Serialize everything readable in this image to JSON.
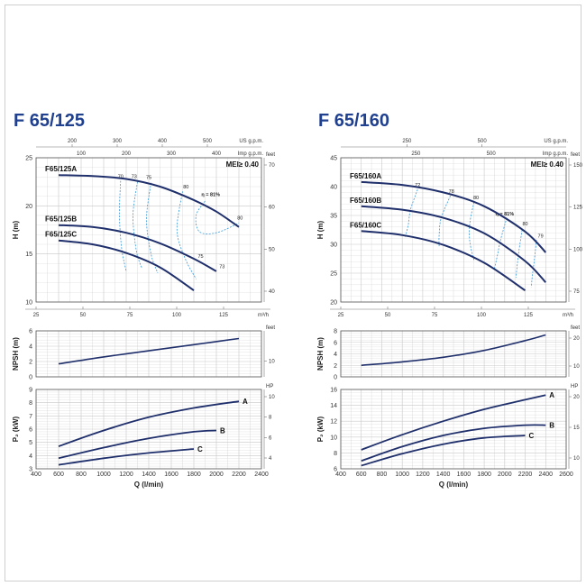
{
  "chart_data": [
    {
      "type": "line",
      "title": "F 65/125",
      "mei": "MEI≥ 0.40",
      "head": {
        "ylabel": "H (m)",
        "ylim": [
          10,
          25
        ],
        "yticks": [
          "10",
          "15",
          "20",
          "25"
        ],
        "right_unit": "feet",
        "right_ticks": [
          "40",
          "50",
          "60",
          "70"
        ],
        "top_unit": "US g.p.m.",
        "top_ticks": [
          "200",
          "300",
          "400",
          "500"
        ],
        "imp_unit": "Imp g.p.m.",
        "imp_ticks": [
          "100",
          "200",
          "300",
          "400"
        ],
        "bottom_unit": "m³/h",
        "bottom_ticks": [
          "25",
          "50",
          "75",
          "100",
          "125"
        ],
        "series": [
          {
            "name": "F65/125A",
            "x": [
              600,
              900,
              1200,
              1500,
              1800,
              2000,
              2200
            ],
            "y": [
              23.2,
              23.1,
              22.8,
              22.0,
              20.6,
              19.4,
              17.8
            ]
          },
          {
            "name": "F65/125B",
            "x": [
              600,
              900,
              1200,
              1500,
              1800,
              2000
            ],
            "y": [
              18.0,
              17.8,
              17.2,
              16.1,
              14.5,
              13.2
            ]
          },
          {
            "name": "F65/125C",
            "x": [
              600,
              900,
              1200,
              1500,
              1800
            ],
            "y": [
              16.4,
              16.0,
              15.1,
              13.6,
              11.2
            ]
          }
        ],
        "efficiency_labels": [
          "70",
          "73",
          "75",
          "80",
          "η = 81%",
          "80",
          "75",
          "73"
        ]
      },
      "npsh": {
        "ylabel": "NPSH (m)",
        "ylim": [
          0,
          6
        ],
        "yticks": [
          "0",
          "2",
          "4",
          "6"
        ],
        "right_unit": "feet",
        "right_ticks": [
          "10"
        ],
        "x": [
          600,
          1000,
          1400,
          1800,
          2200
        ],
        "y": [
          1.7,
          2.6,
          3.4,
          4.2,
          5.0
        ]
      },
      "power": {
        "ylabel": "P₂ (kW)",
        "ylim": [
          3,
          9
        ],
        "yticks": [
          "3",
          "4",
          "5",
          "6",
          "7",
          "8",
          "9"
        ],
        "right_unit": "HP",
        "right_ticks": [
          "4",
          "6",
          "8",
          "10"
        ],
        "xlabel": "Q (l/min)",
        "xlim": [
          400,
          2400
        ],
        "xticks": [
          "400",
          "600",
          "800",
          "1000",
          "1200",
          "1400",
          "1600",
          "1800",
          "2000",
          "2200",
          "2400"
        ],
        "series": [
          {
            "name": "A",
            "x": [
              600,
              1000,
              1400,
              1800,
              2200
            ],
            "y": [
              4.7,
              5.9,
              6.9,
              7.6,
              8.1
            ]
          },
          {
            "name": "B",
            "x": [
              600,
              1000,
              1400,
              1800,
              2000
            ],
            "y": [
              3.8,
              4.6,
              5.3,
              5.8,
              5.9
            ]
          },
          {
            "name": "C",
            "x": [
              600,
              1000,
              1400,
              1800
            ],
            "y": [
              3.3,
              3.8,
              4.2,
              4.5
            ]
          }
        ]
      }
    },
    {
      "type": "line",
      "title": "F 65/160",
      "mei": "MEI≥ 0.40",
      "head": {
        "ylabel": "H (m)",
        "ylim": [
          20,
          45
        ],
        "yticks": [
          "20",
          "25",
          "30",
          "35",
          "40",
          "45"
        ],
        "right_unit": "feet",
        "right_ticks": [
          "75",
          "100",
          "125",
          "150"
        ],
        "top_unit": "US g.p.m.",
        "top_ticks": [
          "250",
          "500"
        ],
        "imp_unit": "Imp g.p.m.",
        "imp_ticks": [
          "250",
          "500"
        ],
        "bottom_unit": "m³/h",
        "bottom_ticks": [
          "25",
          "50",
          "75",
          "100",
          "125"
        ],
        "series": [
          {
            "name": "F65/160A",
            "x": [
              600,
              1000,
              1400,
              1800,
              2200,
              2400
            ],
            "y": [
              40.8,
              40.3,
              39.0,
              36.6,
              32.2,
              28.6
            ]
          },
          {
            "name": "F65/160B",
            "x": [
              600,
              1000,
              1400,
              1800,
              2200,
              2400
            ],
            "y": [
              36.6,
              36.0,
              34.6,
              31.9,
              27.1,
              23.4
            ]
          },
          {
            "name": "F65/160C",
            "x": [
              600,
              1000,
              1400,
              1800,
              2200
            ],
            "y": [
              32.3,
              31.6,
              29.9,
              26.8,
              22.0
            ]
          }
        ],
        "efficiency_labels": [
          "72",
          "78",
          "80",
          "η = 81%",
          "80",
          "79"
        ]
      },
      "npsh": {
        "ylabel": "NPSH (m)",
        "ylim": [
          0,
          8
        ],
        "yticks": [
          "0",
          "2",
          "4",
          "6",
          "8"
        ],
        "right_unit": "feet",
        "right_ticks": [
          "10",
          "20"
        ],
        "x": [
          600,
          1000,
          1400,
          1800,
          2200,
          2400
        ],
        "y": [
          2.0,
          2.6,
          3.4,
          4.6,
          6.3,
          7.3
        ]
      },
      "power": {
        "ylabel": "P₂ (kW)",
        "ylim": [
          6,
          16
        ],
        "yticks": [
          "6",
          "8",
          "10",
          "12",
          "14",
          "16"
        ],
        "right_unit": "HP",
        "right_ticks": [
          "10",
          "15",
          "20"
        ],
        "xlabel": "Q (l/min)",
        "xlim": [
          400,
          2600
        ],
        "xticks": [
          "400",
          "600",
          "800",
          "1000",
          "1200",
          "1400",
          "1600",
          "1800",
          "2000",
          "2200",
          "2400",
          "2600"
        ],
        "series": [
          {
            "name": "A",
            "x": [
              600,
              1000,
              1400,
              1800,
              2200,
              2400
            ],
            "y": [
              8.4,
              10.3,
              12.0,
              13.5,
              14.7,
              15.3
            ]
          },
          {
            "name": "B",
            "x": [
              600,
              1000,
              1400,
              1800,
              2200,
              2400
            ],
            "y": [
              7.0,
              8.8,
              10.2,
              11.1,
              11.5,
              11.5
            ]
          },
          {
            "name": "C",
            "x": [
              600,
              1000,
              1400,
              1800,
              2200
            ],
            "y": [
              6.4,
              7.9,
              9.1,
              9.9,
              10.2
            ]
          }
        ]
      }
    }
  ],
  "colors": {
    "curve": "#1f2f6b",
    "efficiency": "#3a9ad9",
    "grid": "#c8c8c8",
    "title": "#1f3f8f"
  }
}
